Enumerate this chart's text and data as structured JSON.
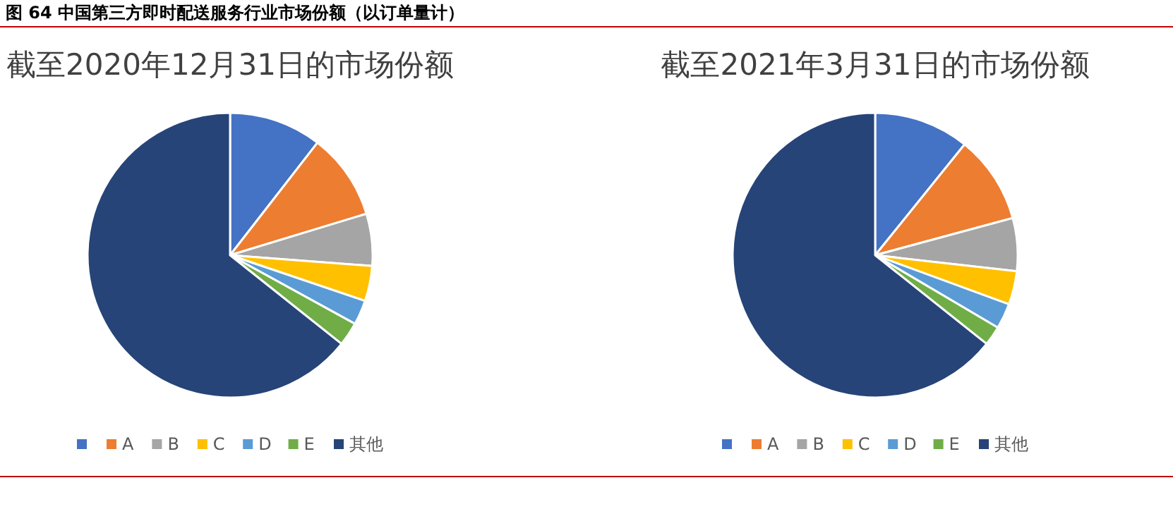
{
  "chart_data": [
    {
      "type": "pie",
      "title": "截至2020年12月31日的市场份额",
      "annotations": [
        "图 64  中国第三方即时配送服务行业市场份额（以订单量计）"
      ],
      "categories": [
        null,
        "A",
        "B",
        "C",
        "D",
        "E",
        "其他"
      ],
      "values": [
        10.5,
        9.8,
        5.9,
        4.0,
        2.8,
        2.7,
        64.3
      ],
      "colors": [
        "#4472c4",
        "#ed7d31",
        "#a5a5a5",
        "#ffc000",
        "#5b9bd5",
        "#70ad47",
        "#264478"
      ],
      "legend": "bottom"
    },
    {
      "type": "pie",
      "title": "截至2021年3月31日的市场份额",
      "categories": [
        null,
        "A",
        "B",
        "C",
        "D",
        "E",
        "其他"
      ],
      "values": [
        10.8,
        10.0,
        6.0,
        3.8,
        2.9,
        2.2,
        64.3
      ],
      "colors": [
        "#4472c4",
        "#ed7d31",
        "#a5a5a5",
        "#ffc000",
        "#5b9bd5",
        "#70ad47",
        "#264478"
      ],
      "legend": "bottom"
    }
  ]
}
